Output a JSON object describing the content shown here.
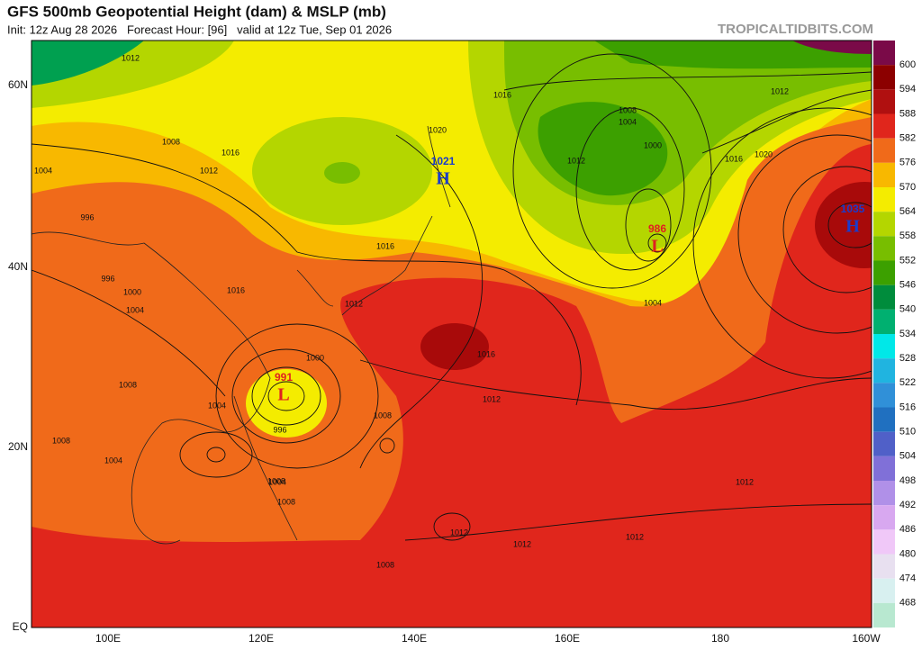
{
  "header": {
    "title": "GFS 500mb Geopotential Height (dam) & MSLP (mb)",
    "subtitle": "Init: 12z Aug 28 2026   Forecast Hour: [96]   valid at 12z Tue, Sep 01 2026",
    "source": "TROPICALTIDBITS.COM"
  },
  "map": {
    "lat_labels": [
      "60N",
      "40N",
      "20N",
      "EQ"
    ],
    "lon_labels": [
      "100E",
      "120E",
      "140E",
      "160E",
      "180",
      "160W"
    ],
    "pressure_centers": [
      {
        "label": "H",
        "value": "1021"
      },
      {
        "label": "L",
        "value": "991"
      },
      {
        "label": "L",
        "value": "986"
      },
      {
        "label": "H",
        "value": "1035"
      }
    ],
    "isobar_labels": [
      "1012",
      "1008",
      "1012",
      "1016",
      "1004",
      "996",
      "996",
      "1000",
      "1004",
      "1016",
      "1012",
      "1016",
      "1000",
      "1008",
      "1004",
      "996",
      "1008",
      "1004",
      "1008",
      "1008",
      "1016",
      "1012",
      "1008",
      "1016",
      "1008",
      "1004",
      "1000",
      "1004",
      "1012",
      "1016",
      "1020",
      "1020",
      "1004",
      "1012",
      "1012",
      "1012",
      "1012",
      "1008",
      "1012"
    ]
  },
  "colorbar": {
    "labels": [
      "600",
      "594",
      "588",
      "582",
      "576",
      "570",
      "564",
      "558",
      "552",
      "546",
      "540",
      "534",
      "528",
      "522",
      "516",
      "510",
      "504",
      "498",
      "492",
      "486",
      "480",
      "474",
      "468"
    ]
  }
}
